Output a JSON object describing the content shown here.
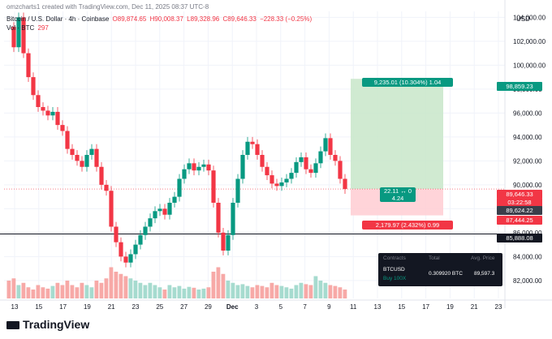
{
  "watermark": "omzcharts1 created with TradingView.com, Dec 11, 2025 08:37 UTC-8",
  "header": {
    "symbol": "Bitcoin / U.S. Dollar · 4h · Coinbase",
    "o": "O89,874.65",
    "h": "H90,008.37",
    "l": "L89,328.96",
    "c": "C89,646.33",
    "chg": "−228.33 (−0.25%)",
    "vol_label": "Vol · BTC",
    "vol_value": "297"
  },
  "currency": "USD",
  "chart_data": {
    "type": "candlestick",
    "ylim": [
      80500,
      104500
    ],
    "y_ticks": [
      "82,000.00",
      "84,000.00",
      "86,000.00",
      "88,000.00",
      "90,000.00",
      "92,000.00",
      "94,000.00",
      "96,000.00",
      "98,000.00",
      "100,000.00",
      "102,000.00",
      "104,000.00"
    ],
    "x_ticks": [
      "13",
      "15",
      "17",
      "19",
      "21",
      "23",
      "25",
      "27",
      "29",
      "Dec",
      "3",
      "5",
      "7",
      "9",
      "11",
      "13",
      "15",
      "17",
      "19",
      "21",
      "23"
    ],
    "price_path": [
      103200,
      101500,
      104000,
      101000,
      99000,
      97500,
      96500,
      96200,
      95800,
      96100,
      95000,
      94500,
      93000,
      92500,
      92000,
      91500,
      92500,
      93000,
      91500,
      90000,
      89500,
      86500,
      85200,
      84000,
      83500,
      84200,
      85000,
      85800,
      86500,
      87200,
      87800,
      88000,
      87500,
      88500,
      89000,
      90500,
      91300,
      91800,
      91200,
      91500,
      91700,
      91200,
      88500,
      86000,
      84500,
      85800,
      88500,
      90500,
      92500,
      93600,
      93400,
      92500,
      91500,
      90800,
      90100,
      89900,
      90200,
      90500,
      91000,
      91900,
      92300,
      91300,
      91000,
      91800,
      92800,
      93900,
      92500,
      92000,
      90500,
      89646
    ],
    "volume_path": [
      40,
      45,
      30,
      35,
      25,
      20,
      30,
      25,
      22,
      28,
      35,
      30,
      40,
      30,
      25,
      35,
      30,
      25,
      40,
      35,
      45,
      70,
      60,
      55,
      50,
      45,
      40,
      35,
      30,
      35,
      30,
      25,
      20,
      30,
      25,
      28,
      22,
      26,
      24,
      20,
      22,
      25,
      60,
      70,
      55,
      40,
      35,
      30,
      32,
      28,
      25,
      30,
      28,
      25,
      35,
      30,
      28,
      25,
      22,
      30,
      35,
      32,
      30,
      50,
      40,
      35,
      30,
      28,
      25,
      20
    ],
    "current_price": "89,646.33",
    "countdown": "03:22:58",
    "gray_price": "89,624.22",
    "stop_price": "87,444.25",
    "target_price": "98,859.23",
    "support_price": "85,888.08",
    "entry_price": 89646,
    "target_value": 98859,
    "stop_value": 87444,
    "support_value": 85888
  },
  "position": {
    "target_label": "9,235.01 (10.304%) 1.04",
    "entry_label_1": "22.11 ↔ 0",
    "entry_label_2": "4.24",
    "stop_label": "2,179.97 (2.432%) 0.99"
  },
  "panel": {
    "col1": "Contracts",
    "col2": "Total",
    "col3": "Avg. Price",
    "symbol": "BTCUSD",
    "sub": "Buy 100X",
    "total": "0.309920 BTC",
    "avg": "89,597.3"
  },
  "logo": "TradingView",
  "colors": {
    "up": "#089981",
    "down": "#f23645",
    "target": "#c8e6c9",
    "stop": "#ffcdd2"
  }
}
